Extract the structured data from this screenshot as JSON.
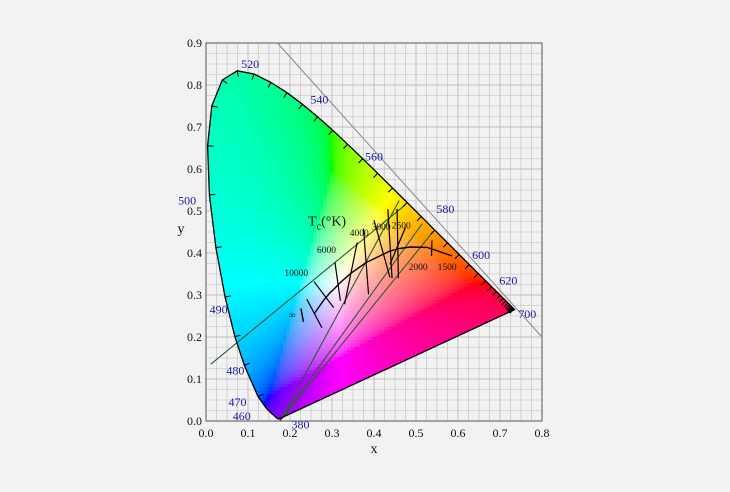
{
  "diagram": {
    "type": "cie-1931-chromaticity",
    "axes": {
      "x": {
        "label": "x",
        "range": [
          0,
          0.8
        ],
        "ticks": [
          "0.0",
          "0.1",
          "0.2",
          "0.3",
          "0.4",
          "0.5",
          "0.6",
          "0.7",
          "0.8"
        ]
      },
      "y": {
        "label": "y",
        "range": [
          0,
          0.9
        ],
        "ticks": [
          "0.0",
          "0.1",
          "0.2",
          "0.3",
          "0.4",
          "0.5",
          "0.6",
          "0.7",
          "0.8",
          "0.9"
        ]
      },
      "grid": true
    },
    "spectral_locus": [
      [
        0.1741,
        0.005
      ],
      [
        0.1738,
        0.0049
      ],
      [
        0.1736,
        0.0049
      ],
      [
        0.1733,
        0.0048
      ],
      [
        0.1726,
        0.0048
      ],
      [
        0.1714,
        0.0051
      ],
      [
        0.1689,
        0.0069
      ],
      [
        0.1644,
        0.0109
      ],
      [
        0.1566,
        0.0177
      ],
      [
        0.144,
        0.0297
      ],
      [
        0.1241,
        0.0578
      ],
      [
        0.0913,
        0.1327
      ],
      [
        0.0687,
        0.2007
      ],
      [
        0.0454,
        0.295
      ],
      [
        0.0235,
        0.4127
      ],
      [
        0.0082,
        0.5384
      ],
      [
        0.0039,
        0.6548
      ],
      [
        0.0139,
        0.7502
      ],
      [
        0.0389,
        0.812
      ],
      [
        0.0743,
        0.8338
      ],
      [
        0.1142,
        0.8262
      ],
      [
        0.1547,
        0.8059
      ],
      [
        0.1929,
        0.7816
      ],
      [
        0.2296,
        0.7543
      ],
      [
        0.2658,
        0.7243
      ],
      [
        0.3016,
        0.6923
      ],
      [
        0.3373,
        0.6589
      ],
      [
        0.3731,
        0.6245
      ],
      [
        0.4087,
        0.5896
      ],
      [
        0.4441,
        0.5547
      ],
      [
        0.4788,
        0.5202
      ],
      [
        0.5125,
        0.4866
      ],
      [
        0.5448,
        0.4544
      ],
      [
        0.5752,
        0.4242
      ],
      [
        0.6029,
        0.3965
      ],
      [
        0.627,
        0.3725
      ],
      [
        0.6482,
        0.3514
      ],
      [
        0.6658,
        0.334
      ],
      [
        0.6801,
        0.3197
      ],
      [
        0.6915,
        0.3083
      ],
      [
        0.7006,
        0.2993
      ],
      [
        0.7079,
        0.292
      ],
      [
        0.714,
        0.2859
      ],
      [
        0.719,
        0.2809
      ],
      [
        0.723,
        0.277
      ],
      [
        0.726,
        0.274
      ],
      [
        0.7283,
        0.2717
      ],
      [
        0.73,
        0.27
      ],
      [
        0.7311,
        0.2689
      ],
      [
        0.732,
        0.268
      ],
      [
        0.7327,
        0.2673
      ],
      [
        0.7334,
        0.2666
      ],
      [
        0.734,
        0.266
      ],
      [
        0.7344,
        0.2656
      ],
      [
        0.7346,
        0.2654
      ],
      [
        0.7347,
        0.2653
      ]
    ],
    "wavelength_labels": [
      {
        "text": "380",
        "nm": 380
      },
      {
        "text": "460",
        "nm": 460
      },
      {
        "text": "470",
        "nm": 470
      },
      {
        "text": "480",
        "nm": 480
      },
      {
        "text": "490",
        "nm": 490
      },
      {
        "text": "500",
        "nm": 500
      },
      {
        "text": "520",
        "nm": 520
      },
      {
        "text": "540",
        "nm": 540
      },
      {
        "text": "560",
        "nm": 560
      },
      {
        "text": "580",
        "nm": 580
      },
      {
        "text": "600",
        "nm": 600
      },
      {
        "text": "620",
        "nm": 620
      },
      {
        "text": "700",
        "nm": 700
      }
    ],
    "planckian_locus": [
      [
        0.258,
        0.256
      ],
      [
        0.2807,
        0.2883
      ],
      [
        0.295,
        0.305
      ],
      [
        0.3067,
        0.3162
      ],
      [
        0.3135,
        0.3236
      ],
      [
        0.3221,
        0.3318
      ],
      [
        0.345,
        0.3516
      ],
      [
        0.3805,
        0.3768
      ],
      [
        0.4369,
        0.4041
      ],
      [
        0.4596,
        0.4106
      ],
      [
        0.4872,
        0.4144
      ],
      [
        0.5267,
        0.4133
      ],
      [
        0.5857,
        0.3931
      ]
    ],
    "cct_title": "T",
    "cct_subscript": "c",
    "cct_unit": "(°K)",
    "cct_labels": [
      {
        "text": "10000"
      },
      {
        "text": "6000"
      },
      {
        "text": "4000"
      },
      {
        "text": "3000"
      },
      {
        "text": "2500"
      },
      {
        "text": "2000"
      },
      {
        "text": "1500"
      },
      {
        "text": "∞"
      }
    ],
    "isotherms": [
      [
        [
          0.24,
          0.29
        ],
        [
          0.276,
          0.222
        ]
      ],
      [
        [
          0.257,
          0.332
        ],
        [
          0.304,
          0.27
        ]
      ],
      [
        [
          0.307,
          0.378
        ],
        [
          0.32,
          0.286
        ]
      ],
      [
        [
          0.36,
          0.425
        ],
        [
          0.33,
          0.278
        ]
      ],
      [
        [
          0.375,
          0.458
        ],
        [
          0.387,
          0.302
        ]
      ],
      [
        [
          0.4,
          0.478
        ],
        [
          0.438,
          0.342
        ]
      ],
      [
        [
          0.433,
          0.504
        ],
        [
          0.443,
          0.34
        ]
      ],
      [
        [
          0.455,
          0.505
        ],
        [
          0.458,
          0.34
        ]
      ],
      [
        [
          0.438,
          0.373
        ],
        [
          0.475,
          0.461
        ]
      ],
      [
        [
          0.538,
          0.43
        ],
        [
          0.537,
          0.393
        ]
      ]
    ],
    "colors": {
      "background": "#f2f2f2",
      "grid": "#bdbdbd",
      "locus": "#000000",
      "label": "#1a1a9a",
      "overlay": "#2d5a2d"
    }
  }
}
